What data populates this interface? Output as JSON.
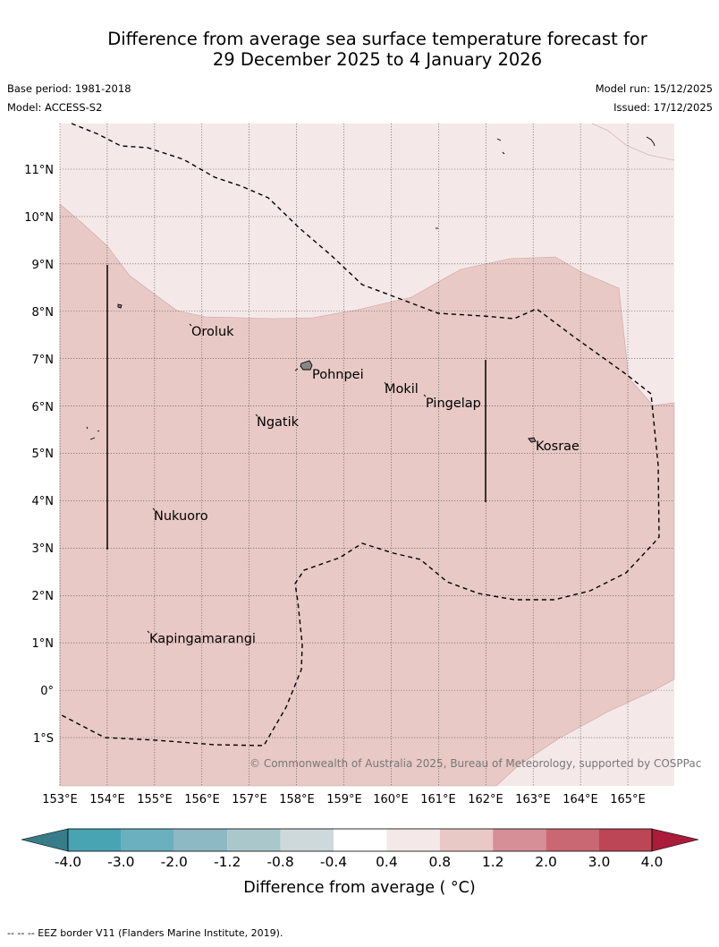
{
  "title": {
    "line1": "Difference from average sea surface temperature forecast for",
    "line2": "29 December 2025 to 4 January 2026"
  },
  "meta": {
    "base_period": "Base period: 1981-2018",
    "model": "Model: ACCESS-S2",
    "model_run": "Model run: 15/12/2025",
    "issued": "Issued: 17/12/2025"
  },
  "map": {
    "lon_labels": [
      "153°E",
      "154°E",
      "155°E",
      "156°E",
      "157°E",
      "158°E",
      "159°E",
      "160°E",
      "161°E",
      "162°E",
      "163°E",
      "164°E",
      "165°E"
    ],
    "lat_labels": [
      "11°N",
      "10°N",
      "9°N",
      "8°N",
      "7°N",
      "6°N",
      "5°N",
      "4°N",
      "3°N",
      "2°N",
      "1°N",
      "0°",
      "1°S"
    ],
    "places": [
      "Oroluk",
      "Pohnpei",
      "Mokil",
      "Pingelap",
      "Ngatik",
      "Kosrae",
      "Nukuoro",
      "Kapingamarangi"
    ],
    "copyright": "© Commonwealth of Australia 2025, Bureau of Meteorology, supported by COSPPac",
    "colors": {
      "anomaly_0_4_to_0_8": "#f5e8e8",
      "anomaly_0_8_to_1_2": "#e8c9c5"
    }
  },
  "colorbar": {
    "ticks": [
      "-4.0",
      "-3.0",
      "-2.0",
      "-1.2",
      "-0.8",
      "-0.4",
      "0.4",
      "0.8",
      "1.2",
      "2.0",
      "3.0",
      "4.0"
    ],
    "colors": [
      "#387c89",
      "#48a3b3",
      "#6ab0bf",
      "#8db9c4",
      "#aac8cc",
      "#cdd9da",
      "#ffffff",
      "#f5e8e8",
      "#e8c9c5",
      "#d68f96",
      "#c96873",
      "#bd4656",
      "#a91d3a"
    ],
    "title": "Difference from average ( °C)"
  },
  "footer": {
    "note": "--  --  -- EEZ border V11 (Flanders Marine Institute, 2019)."
  }
}
